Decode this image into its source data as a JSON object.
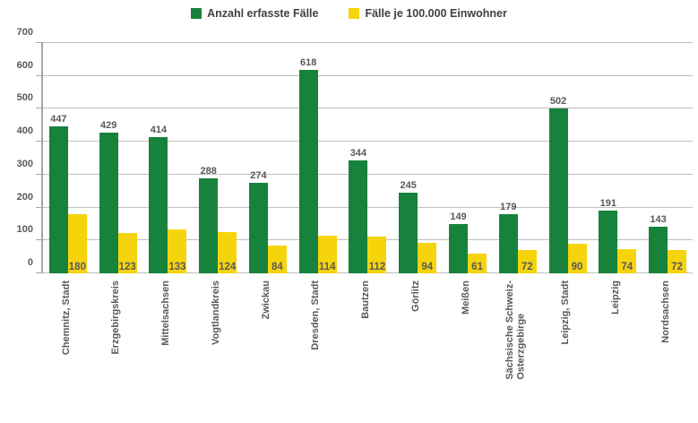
{
  "chart_data": {
    "type": "bar",
    "title": "",
    "categories": [
      "Chemnitz, Stadt",
      "Erzgebirgskreis",
      "Mittelsachsen",
      "Vogtlandkreis",
      "Zwickau",
      "Dresden, Stadt",
      "Bautzen",
      "Görlitz",
      "Meißen",
      "Sächsische Schweiz-\nOsterzgebirge",
      "Leipzig, Stadt",
      "Leipzig",
      "Nordsachsen"
    ],
    "series": [
      {
        "name": "Anzahl erfasste Fälle",
        "color": "#17823B",
        "label_position": "above",
        "values": [
          447,
          429,
          414,
          288,
          274,
          618,
          344,
          245,
          149,
          179,
          502,
          191,
          143
        ]
      },
      {
        "name": "Fälle je 100.000 Einwohner",
        "color": "#F6D40C",
        "label_position": "inside-base",
        "values": [
          180,
          123,
          133,
          124,
          84,
          114,
          112,
          94,
          61,
          72,
          90,
          74,
          72
        ]
      }
    ],
    "xlabel": "",
    "ylabel": "",
    "ylim": [
      0,
      700
    ],
    "yticks": [
      0,
      100,
      200,
      300,
      400,
      500,
      600,
      700
    ],
    "grid": true,
    "legend_position": "top",
    "colors": {
      "grid_color": "#BFBFBF",
      "axis_color": "#A6A6A6",
      "tick_label_color": "#595959",
      "value_label_color": "#595959",
      "legend_text_color": "#404040",
      "background": "#FFFFFF"
    }
  }
}
